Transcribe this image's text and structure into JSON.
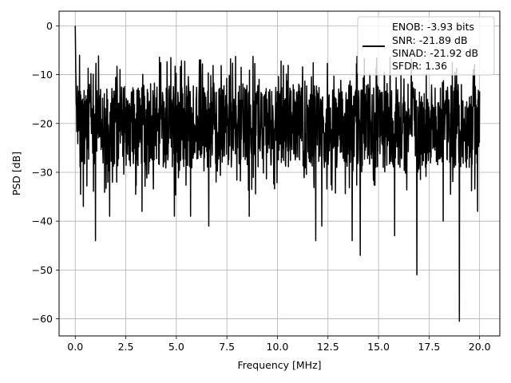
{
  "chart_data": {
    "type": "line",
    "title": "",
    "xlabel": "Frequency [MHz]",
    "ylabel": "PSD [dB]",
    "xlim": [
      -0.8,
      21.0
    ],
    "ylim": [
      -63.5,
      3.0
    ],
    "xticks": [
      0.0,
      2.5,
      5.0,
      7.5,
      10.0,
      12.5,
      15.0,
      17.5,
      20.0
    ],
    "xtick_labels": [
      "0.0",
      "2.5",
      "5.0",
      "7.5",
      "10.0",
      "12.5",
      "15.0",
      "17.5",
      "20.0"
    ],
    "yticks": [
      0,
      -10,
      -20,
      -30,
      -40,
      -50,
      -60
    ],
    "ytick_labels": [
      "0",
      "−10",
      "−20",
      "−30",
      "−40",
      "−50",
      "−60"
    ],
    "grid": true,
    "legend_position": "top-right",
    "legend_lines": [
      "ENOB: -3.93 bits",
      "SNR: -21.89 dB",
      "SINAD: -21.92 dB",
      "SFDR: 1.36"
    ],
    "series": [
      {
        "color": "#000000",
        "x_range": [
          0.0,
          20.0
        ],
        "n_points": 1600,
        "peak": {
          "x": 0.0,
          "y": 0.0
        },
        "typical_band": [
          -29,
          -12
        ],
        "max_level": -6,
        "deep_dips": [
          {
            "x": 0.4,
            "y": -37
          },
          {
            "x": 1.0,
            "y": -44
          },
          {
            "x": 1.7,
            "y": -39
          },
          {
            "x": 3.3,
            "y": -38
          },
          {
            "x": 4.9,
            "y": -39
          },
          {
            "x": 5.7,
            "y": -39
          },
          {
            "x": 6.6,
            "y": -41
          },
          {
            "x": 8.6,
            "y": -39
          },
          {
            "x": 11.9,
            "y": -44
          },
          {
            "x": 12.2,
            "y": -41
          },
          {
            "x": 13.7,
            "y": -44
          },
          {
            "x": 14.1,
            "y": -47
          },
          {
            "x": 15.8,
            "y": -43
          },
          {
            "x": 16.9,
            "y": -51
          },
          {
            "x": 18.2,
            "y": -40
          },
          {
            "x": 19.0,
            "y": -60.5
          },
          {
            "x": 19.9,
            "y": -38
          }
        ]
      }
    ]
  }
}
